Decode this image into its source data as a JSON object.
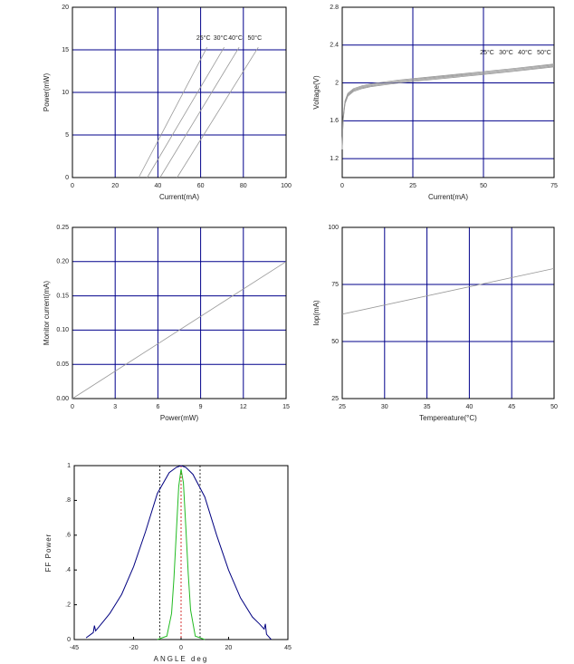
{
  "chart_data": [
    {
      "type": "line",
      "xlabel": "Current(mA)",
      "ylabel": "Power(mW)",
      "xlim": [
        0,
        100
      ],
      "xticks": [
        0,
        20,
        40,
        60,
        80,
        100
      ],
      "ylim": [
        0,
        20
      ],
      "yticks": [
        0,
        5,
        10,
        15,
        20
      ],
      "grid": true,
      "grid_color": "#00008b",
      "legend": "line-end",
      "series": [
        {
          "name": "25°C",
          "color": "#999999",
          "x": [
            31,
            63
          ],
          "values": [
            0,
            15.3
          ]
        },
        {
          "name": "30°C",
          "color": "#999999",
          "x": [
            35,
            71
          ],
          "values": [
            0,
            15.3
          ]
        },
        {
          "name": "40°C",
          "color": "#999999",
          "x": [
            41,
            78
          ],
          "values": [
            0,
            15.3
          ]
        },
        {
          "name": "50°C",
          "color": "#999999",
          "x": [
            49,
            87
          ],
          "values": [
            0,
            15.3
          ]
        }
      ]
    },
    {
      "type": "line",
      "xlabel": "Current(mA)",
      "ylabel": "Voltage(V)",
      "xlim": [
        0,
        75
      ],
      "xticks": [
        0,
        25,
        50,
        75
      ],
      "ylim": [
        1.0,
        2.8
      ],
      "yticks": [
        1.2,
        1.6,
        2.0,
        2.4,
        2.8
      ],
      "grid": true,
      "grid_color": "#00008b",
      "legend": "upper-right",
      "series": [
        {
          "name": "25°C",
          "color": "#999999",
          "x": [
            0,
            0.3,
            1,
            2,
            4,
            7,
            10,
            15,
            20,
            30,
            40,
            50,
            60,
            75
          ],
          "values": [
            1.3,
            1.6,
            1.78,
            1.86,
            1.91,
            1.94,
            1.96,
            1.98,
            2.0,
            2.03,
            2.06,
            2.09,
            2.12,
            2.17
          ]
        },
        {
          "name": "30°C",
          "color": "#999999",
          "x": [
            0,
            0.3,
            1,
            2,
            4,
            7,
            10,
            15,
            20,
            30,
            40,
            50,
            60,
            75
          ],
          "values": [
            1.3,
            1.61,
            1.79,
            1.87,
            1.92,
            1.95,
            1.97,
            1.99,
            2.01,
            2.04,
            2.07,
            2.1,
            2.13,
            2.18
          ]
        },
        {
          "name": "40°C",
          "color": "#999999",
          "x": [
            0,
            0.3,
            1,
            2,
            4,
            7,
            10,
            15,
            20,
            30,
            40,
            50,
            60,
            75
          ],
          "values": [
            1.3,
            1.62,
            1.8,
            1.88,
            1.93,
            1.96,
            1.98,
            2.0,
            2.02,
            2.05,
            2.08,
            2.11,
            2.14,
            2.19
          ]
        },
        {
          "name": "50°C",
          "color": "#999999",
          "x": [
            0,
            0.3,
            1,
            2,
            4,
            7,
            10,
            15,
            20,
            30,
            40,
            50,
            60,
            75
          ],
          "values": [
            1.3,
            1.63,
            1.81,
            1.89,
            1.94,
            1.97,
            1.99,
            2.01,
            2.03,
            2.06,
            2.09,
            2.12,
            2.15,
            2.2
          ]
        }
      ]
    },
    {
      "type": "line",
      "xlabel": "Power(mW)",
      "ylabel": "Monitor current(mA)",
      "xlim": [
        0,
        15
      ],
      "xticks": [
        0,
        3,
        6,
        9,
        12,
        15
      ],
      "ylim": [
        0,
        0.25
      ],
      "yticks": [
        {
          "value": 0,
          "label": "0.00"
        },
        0.05,
        {
          "value": 0.1,
          "label": "0.10"
        },
        0.15,
        {
          "value": 0.2,
          "label": "0.20"
        },
        0.25
      ],
      "grid": true,
      "grid_color": "#00008b",
      "series": [
        {
          "color": "#999999",
          "x": [
            0,
            15
          ],
          "values": [
            0,
            0.2
          ]
        }
      ]
    },
    {
      "type": "line",
      "xlabel": "Tempereature(°C)",
      "ylabel": "Iop(mA)",
      "xlim": [
        25,
        50
      ],
      "xticks": [
        25,
        30,
        35,
        40,
        45,
        50
      ],
      "ylim": [
        25,
        100
      ],
      "yticks": [
        25,
        50,
        75,
        100
      ],
      "grid": true,
      "grid_color": "#00008b",
      "series": [
        {
          "color": "#999999",
          "x": [
            25,
            50
          ],
          "values": [
            62,
            82
          ]
        }
      ]
    },
    {
      "type": "line",
      "xlabel": "ANGLE deg",
      "ylabel": "FF Power",
      "xlim": [
        -45,
        45
      ],
      "xticks": [
        -45,
        -20,
        0,
        20,
        45
      ],
      "ylim": [
        0,
        1
      ],
      "yticks": [
        0,
        {
          "value": 0.2,
          "label": ".2"
        },
        {
          "value": 0.4,
          "label": ".4"
        },
        {
          "value": 0.6,
          "label": ".6"
        },
        {
          "value": 0.8,
          "label": ".8"
        },
        1
      ],
      "grid": false,
      "vlines": [
        {
          "value": -9,
          "color": "#000000"
        },
        {
          "value": 0,
          "color": "#cc0000"
        },
        {
          "value": 8,
          "color": "#000000"
        }
      ],
      "series": [
        {
          "color": "#000080",
          "x": [
            -40,
            -37,
            -36.5,
            -36,
            -33,
            -30,
            -25,
            -20,
            -15,
            -10,
            -5,
            -2,
            0,
            2,
            5,
            10,
            15,
            20,
            25,
            30,
            33,
            35,
            35.5,
            36,
            38
          ],
          "values": [
            0.01,
            0.04,
            0.08,
            0.05,
            0.1,
            0.15,
            0.26,
            0.42,
            0.62,
            0.84,
            0.96,
            0.99,
            1.0,
            0.99,
            0.95,
            0.82,
            0.6,
            0.4,
            0.24,
            0.13,
            0.09,
            0.06,
            0.09,
            0.03,
            0.0
          ]
        },
        {
          "color": "#22bb22",
          "x": [
            -10,
            -6,
            -4,
            -3,
            -2,
            -1,
            0,
            1,
            2,
            3,
            4,
            6,
            10
          ],
          "values": [
            0,
            0.02,
            0.15,
            0.35,
            0.62,
            0.88,
            0.98,
            0.9,
            0.65,
            0.38,
            0.17,
            0.02,
            0
          ]
        }
      ]
    }
  ]
}
